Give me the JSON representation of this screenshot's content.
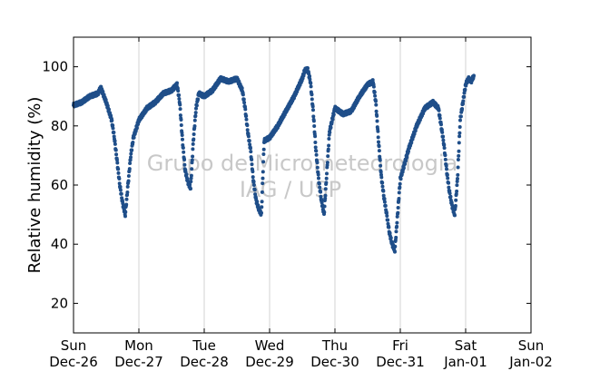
{
  "chart_data": {
    "type": "scatter",
    "title": "",
    "xlabel": "",
    "ylabel": "Relative humidity (%)",
    "ylim": [
      10,
      110
    ],
    "yticks": [
      20,
      40,
      60,
      80,
      100
    ],
    "xlim": [
      "2010-12-26",
      "2011-01-02"
    ],
    "xticks": [
      {
        "day": "Sun",
        "date": "Dec-26"
      },
      {
        "day": "Mon",
        "date": "Dec-27"
      },
      {
        "day": "Tue",
        "date": "Dec-28"
      },
      {
        "day": "Wed",
        "date": "Dec-29"
      },
      {
        "day": "Thu",
        "date": "Dec-30"
      },
      {
        "day": "Fri",
        "date": "Dec-31"
      },
      {
        "day": "Sat",
        "date": "Jan-01"
      },
      {
        "day": "Sun",
        "date": "Jan-02"
      }
    ],
    "grid": "vertical",
    "marker_color": "#1f4e89",
    "watermark": [
      "Grupo de Micrometeorologia",
      "IAG / USP"
    ],
    "series": [
      {
        "x": [
          "2010-12-26 00:00",
          "2010-12-26 03:00",
          "2010-12-26 06:00",
          "2010-12-26 09:00",
          "2010-12-26 10:00",
          "2010-12-26 12:00",
          "2010-12-26 14:00",
          "2010-12-26 15:00",
          "2010-12-26 16:00",
          "2010-12-26 17:00",
          "2010-12-26 18:00",
          "2010-12-26 19:00",
          "2010-12-26 20:00",
          "2010-12-26 21:00",
          "2010-12-26 22:00",
          "2010-12-27 00:00",
          "2010-12-27 03:00",
          "2010-12-27 06:00",
          "2010-12-27 09:00",
          "2010-12-27 12:00",
          "2010-12-27 14:00",
          "2010-12-27 15:00",
          "2010-12-27 16:00",
          "2010-12-27 17:00",
          "2010-12-27 18:00",
          "2010-12-27 19:00",
          "2010-12-27 20:00",
          "2010-12-27 21:00",
          "2010-12-27 22:00",
          "2010-12-28 00:00",
          "2010-12-28 03:00",
          "2010-12-28 06:00",
          "2010-12-28 09:00",
          "2010-12-28 12:00",
          "2010-12-28 14:00",
          "2010-12-28 15:00",
          "2010-12-28 16:00",
          "2010-12-28 17:00",
          "2010-12-28 18:00",
          "2010-12-28 19:00",
          "2010-12-28 20:00",
          "2010-12-28 21:00",
          "2010-12-28 22:00",
          "2010-12-29 00:00",
          "2010-12-29 03:00",
          "2010-12-29 06:00",
          "2010-12-29 09:00",
          "2010-12-29 12:00",
          "2010-12-29 13:00",
          "2010-12-29 14:00",
          "2010-12-29 15:00",
          "2010-12-29 16:00",
          "2010-12-29 17:00",
          "2010-12-29 18:00",
          "2010-12-29 19:00",
          "2010-12-29 20:00",
          "2010-12-29 21:00",
          "2010-12-29 22:00",
          "2010-12-30 00:00",
          "2010-12-30 03:00",
          "2010-12-30 06:00",
          "2010-12-30 09:00",
          "2010-12-30 12:00",
          "2010-12-30 14:00",
          "2010-12-30 15:00",
          "2010-12-30 16:00",
          "2010-12-30 17:00",
          "2010-12-30 18:00",
          "2010-12-30 19:00",
          "2010-12-30 20:00",
          "2010-12-30 21:00",
          "2010-12-30 22:00",
          "2010-12-31 00:00",
          "2010-12-31 03:00",
          "2010-12-31 06:00",
          "2010-12-31 09:00",
          "2010-12-31 12:00",
          "2010-12-31 14:00",
          "2010-12-31 15:00",
          "2010-12-31 16:00",
          "2010-12-31 17:00",
          "2010-12-31 18:00",
          "2010-12-31 19:00",
          "2010-12-31 20:00",
          "2010-12-31 21:00",
          "2010-12-31 22:00",
          "2011-01-01 00:00",
          "2011-01-01 01:00",
          "2011-01-01 02:00",
          "2011-01-01 03:00"
        ],
        "y": [
          87,
          88,
          90,
          91,
          93,
          88,
          82,
          76,
          68,
          60,
          54,
          50,
          60,
          70,
          76,
          82,
          86,
          88,
          91,
          92,
          94,
          88,
          75,
          65,
          61,
          59,
          75,
          86,
          91,
          90,
          92,
          96,
          95,
          96,
          92,
          86,
          78,
          72,
          62,
          55,
          52,
          50,
          75,
          76,
          80,
          85,
          90,
          96,
          99,
          99,
          95,
          85,
          72,
          62,
          55,
          50,
          64,
          78,
          86,
          84,
          85,
          90,
          94,
          95,
          88,
          75,
          63,
          56,
          50,
          44,
          40,
          38,
          62,
          72,
          80,
          86,
          88,
          86,
          80,
          74,
          65,
          58,
          53,
          50,
          62,
          82,
          94,
          96,
          95,
          97
        ]
      }
    ]
  }
}
